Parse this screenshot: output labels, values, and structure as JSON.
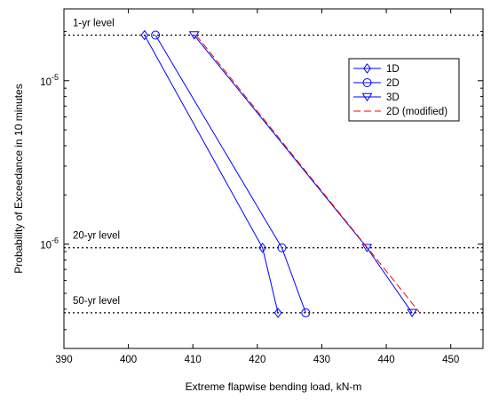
{
  "chart_data": {
    "type": "line",
    "title": "",
    "xlabel": "Extreme flapwise bending load, kN-m",
    "ylabel": "Probability of Exceedance in 10 minutes",
    "xlim": [
      390,
      455
    ],
    "ylim": [
      2.3e-07,
      2.75e-05
    ],
    "yscale": "log",
    "xticks": [
      390,
      400,
      410,
      420,
      430,
      440,
      450
    ],
    "yticks": [
      {
        "value": 1e-06,
        "base": "10",
        "exp": "-6"
      },
      {
        "value": 1e-05,
        "base": "10",
        "exp": "-5"
      }
    ],
    "grid": false,
    "legend_position": "top-right",
    "reference_levels": [
      {
        "label": "1-yr level",
        "y": 1.9e-05
      },
      {
        "label": "20-yr level",
        "y": 9.5e-07
      },
      {
        "label": "50-yr level",
        "y": 3.8e-07
      }
    ],
    "series": [
      {
        "name": "1D",
        "marker": "diamond",
        "color": "#0000ff",
        "dash": "",
        "x": [
          402.5,
          420.8,
          423.2
        ],
        "y": [
          1.9e-05,
          9.5e-07,
          3.8e-07
        ]
      },
      {
        "name": "2D",
        "marker": "circle",
        "color": "#0000ff",
        "dash": "",
        "x": [
          404.2,
          423.8,
          427.5
        ],
        "y": [
          1.9e-05,
          9.5e-07,
          3.8e-07
        ]
      },
      {
        "name": "3D",
        "marker": "triangle-down",
        "color": "#0000ff",
        "dash": "",
        "x": [
          410.2,
          437.0,
          444.0
        ],
        "y": [
          1.9e-05,
          9.5e-07,
          3.8e-07
        ]
      },
      {
        "name": "2D (modified)",
        "marker": "none",
        "color": "#ff0000",
        "dash": "dashed",
        "x": [
          410.5,
          445.2
        ],
        "y": [
          1.9e-05,
          3.8e-07
        ]
      }
    ]
  }
}
